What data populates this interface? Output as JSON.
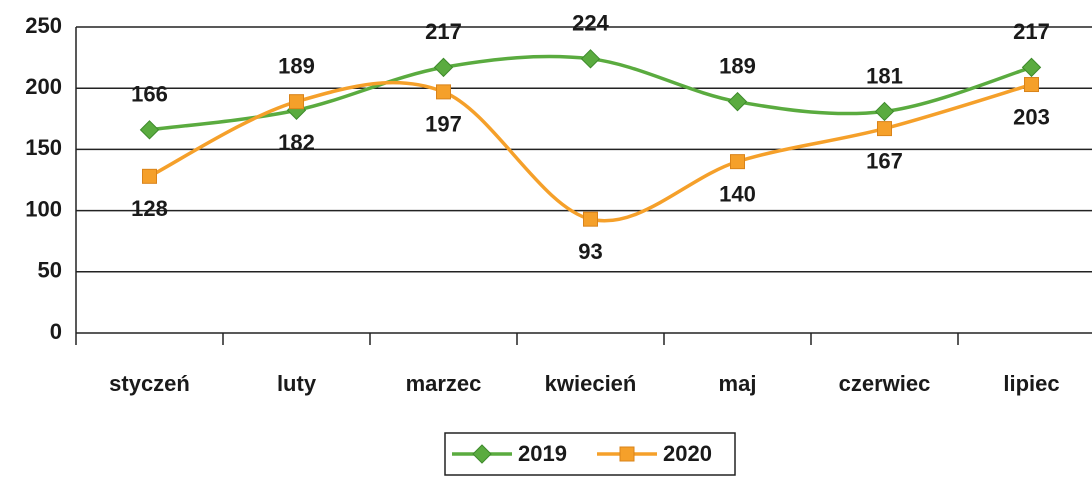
{
  "chart_data": {
    "type": "line",
    "categories": [
      "styczeń",
      "luty",
      "marzec",
      "kwiecień",
      "maj",
      "czerwiec",
      "lipiec"
    ],
    "series": [
      {
        "name": "2019",
        "color": "#5aab3f",
        "marker": "diamond",
        "values": [
          166,
          182,
          217,
          224,
          189,
          181,
          217
        ]
      },
      {
        "name": "2020",
        "color": "#f5a02a",
        "marker": "square",
        "values": [
          128,
          189,
          197,
          93,
          140,
          167,
          203
        ]
      }
    ],
    "ylim": [
      0,
      250
    ],
    "yticks": [
      0,
      50,
      100,
      150,
      200,
      250
    ],
    "grid": true,
    "legend": "bottom"
  }
}
